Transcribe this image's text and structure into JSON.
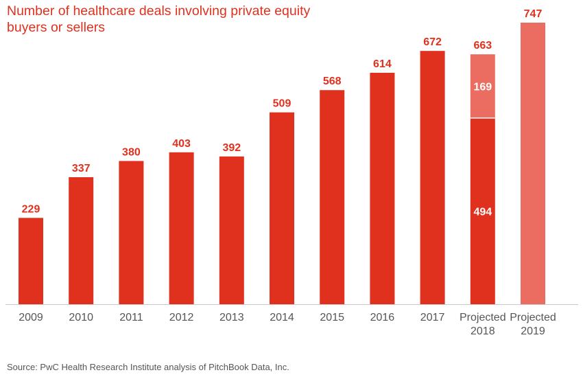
{
  "chart_data": {
    "type": "bar",
    "stacked": true,
    "title": "Number of healthcare deals involving private equity buyers or sellers",
    "categories": [
      {
        "label": [
          "2009"
        ]
      },
      {
        "label": [
          "2010"
        ]
      },
      {
        "label": [
          "2011"
        ]
      },
      {
        "label": [
          "2012"
        ]
      },
      {
        "label": [
          "2013"
        ]
      },
      {
        "label": [
          "2014"
        ]
      },
      {
        "label": [
          "2015"
        ]
      },
      {
        "label": [
          "2016"
        ]
      },
      {
        "label": [
          "2017"
        ]
      },
      {
        "label": [
          "Projected",
          "2018"
        ]
      },
      {
        "label": [
          "Projected",
          "2019"
        ]
      }
    ],
    "series": [
      {
        "values": [
          229,
          337,
          380,
          403,
          392,
          509,
          568,
          614,
          672,
          494,
          null
        ],
        "color": "#e0301e"
      },
      {
        "values": [
          null,
          null,
          null,
          null,
          null,
          null,
          null,
          null,
          null,
          169,
          747
        ],
        "color": "#eb6c61"
      }
    ],
    "totals": [
      229,
      337,
      380,
      403,
      392,
      509,
      568,
      614,
      672,
      663,
      747
    ],
    "ylim": [
      0,
      747
    ],
    "grid": false,
    "xlabel": "",
    "ylabel": ""
  },
  "source": "Source: PwC Health Research Institute analysis of PitchBook Data, Inc."
}
